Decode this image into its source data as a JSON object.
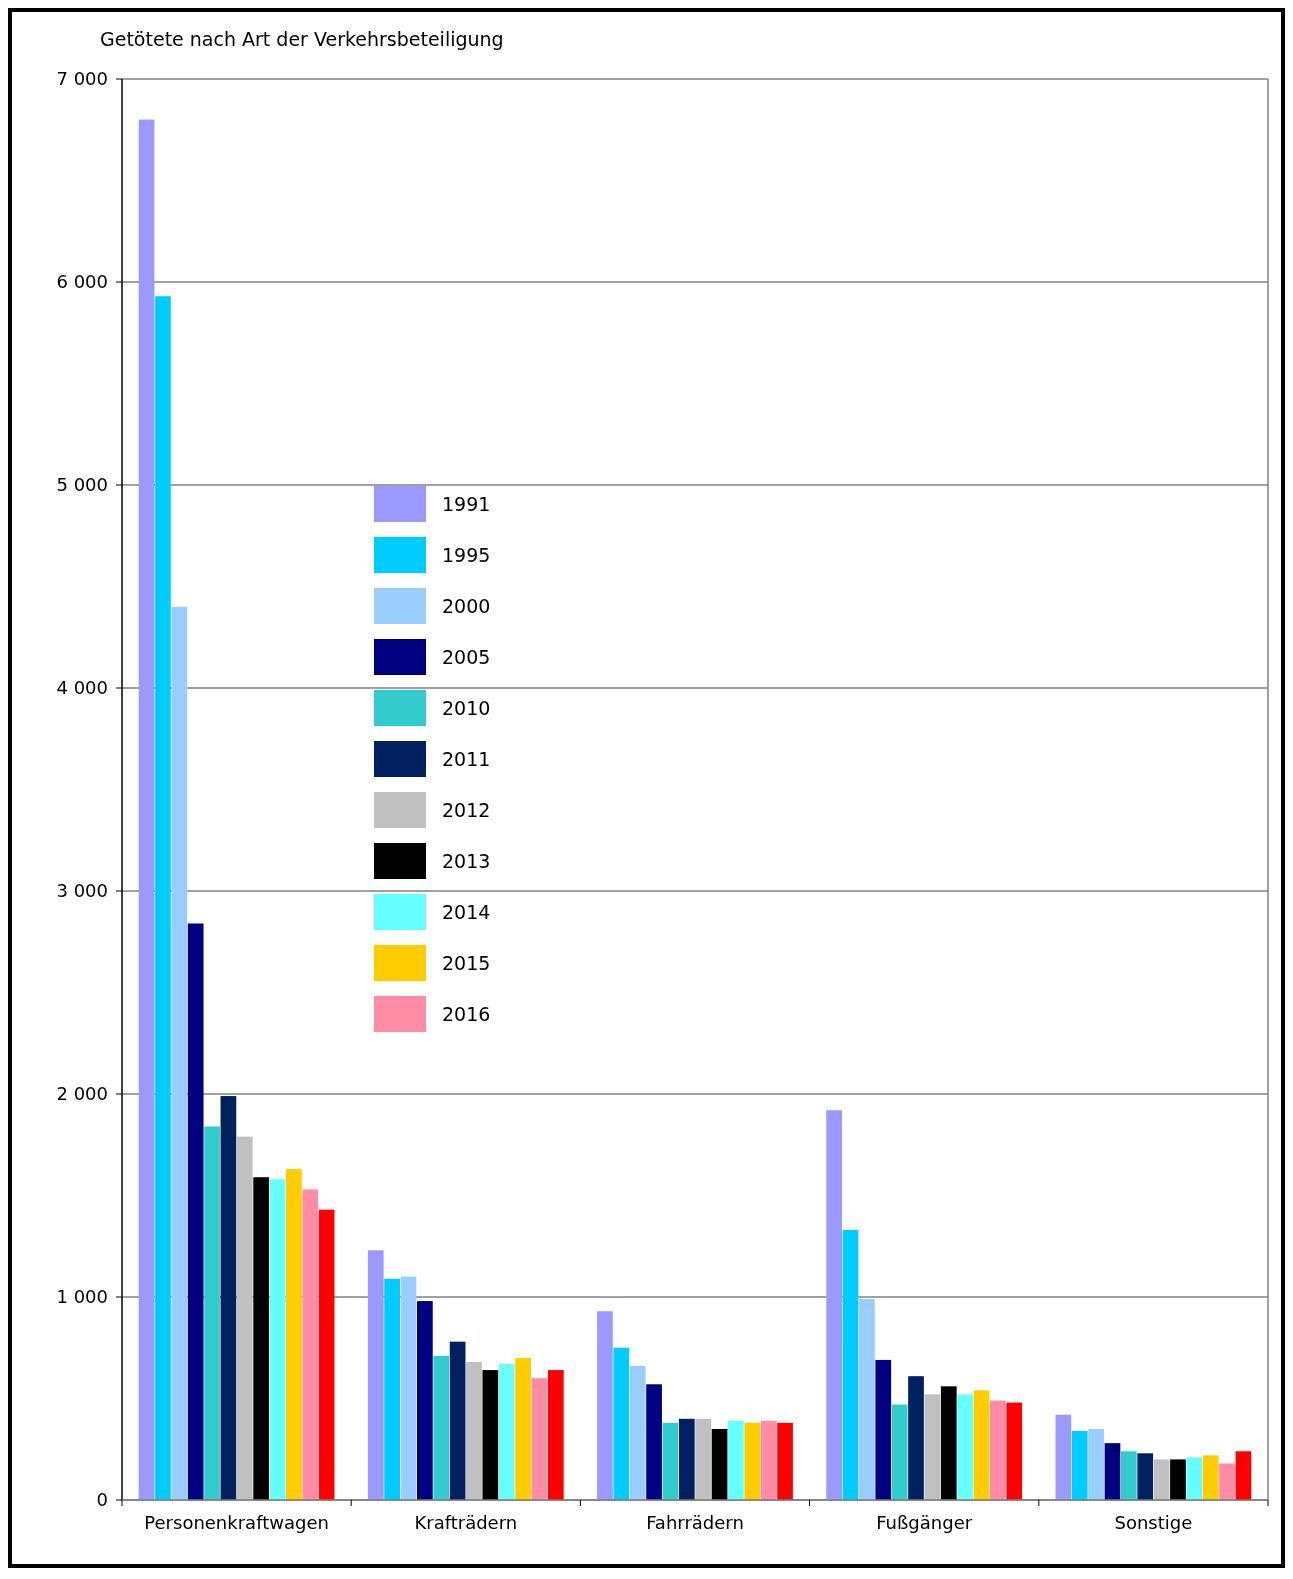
{
  "chart_data": {
    "type": "bar",
    "title": "Getötete nach Art der Verkehrsbeteiligung",
    "categories": [
      "Personenkraftwagen",
      "Krafträdern",
      "Fahrrädern",
      "Fußgänger",
      "Sonstige"
    ],
    "series": [
      {
        "name": "1991",
        "color": "#9999ff",
        "values": [
          6800,
          1230,
          930,
          1920,
          420
        ]
      },
      {
        "name": "1995",
        "color": "#00ccff",
        "values": [
          5930,
          1090,
          750,
          1330,
          340
        ]
      },
      {
        "name": "2000",
        "color": "#99ccff",
        "values": [
          4400,
          1100,
          660,
          990,
          350
        ]
      },
      {
        "name": "2005",
        "color": "#000080",
        "values": [
          2840,
          980,
          570,
          690,
          280
        ]
      },
      {
        "name": "2010",
        "color": "#33cccc",
        "values": [
          1840,
          710,
          380,
          470,
          240
        ]
      },
      {
        "name": "2011",
        "color": "#002060",
        "values": [
          1990,
          780,
          400,
          610,
          230
        ]
      },
      {
        "name": "2012",
        "color": "#c0c0c0",
        "values": [
          1790,
          680,
          400,
          520,
          200
        ]
      },
      {
        "name": "2013",
        "color": "#000000",
        "values": [
          1590,
          640,
          350,
          560,
          200
        ]
      },
      {
        "name": "2014",
        "color": "#66ffff",
        "values": [
          1580,
          670,
          390,
          520,
          210
        ]
      },
      {
        "name": "2015",
        "color": "#ffcc00",
        "values": [
          1630,
          700,
          380,
          540,
          220
        ]
      },
      {
        "name": "2016",
        "color": "#ff8ba5",
        "values": [
          1530,
          600,
          390,
          490,
          180
        ]
      },
      {
        "color": "#ff0000",
        "values": [
          1430,
          640,
          380,
          480,
          240
        ]
      }
    ],
    "ylim": [
      0,
      7000
    ],
    "yticks": [
      0,
      {
        "value": 1000,
        "label": "1 000"
      },
      {
        "value": 2000,
        "label": "2 000"
      },
      {
        "value": 3000,
        "label": "3 000"
      },
      {
        "value": 4000,
        "label": "4 000"
      },
      {
        "value": 5000,
        "label": "5 000"
      },
      {
        "value": 6000,
        "label": "6 000"
      },
      {
        "value": 7000,
        "label": "7 000"
      }
    ],
    "grid": "y",
    "legend": "left"
  }
}
